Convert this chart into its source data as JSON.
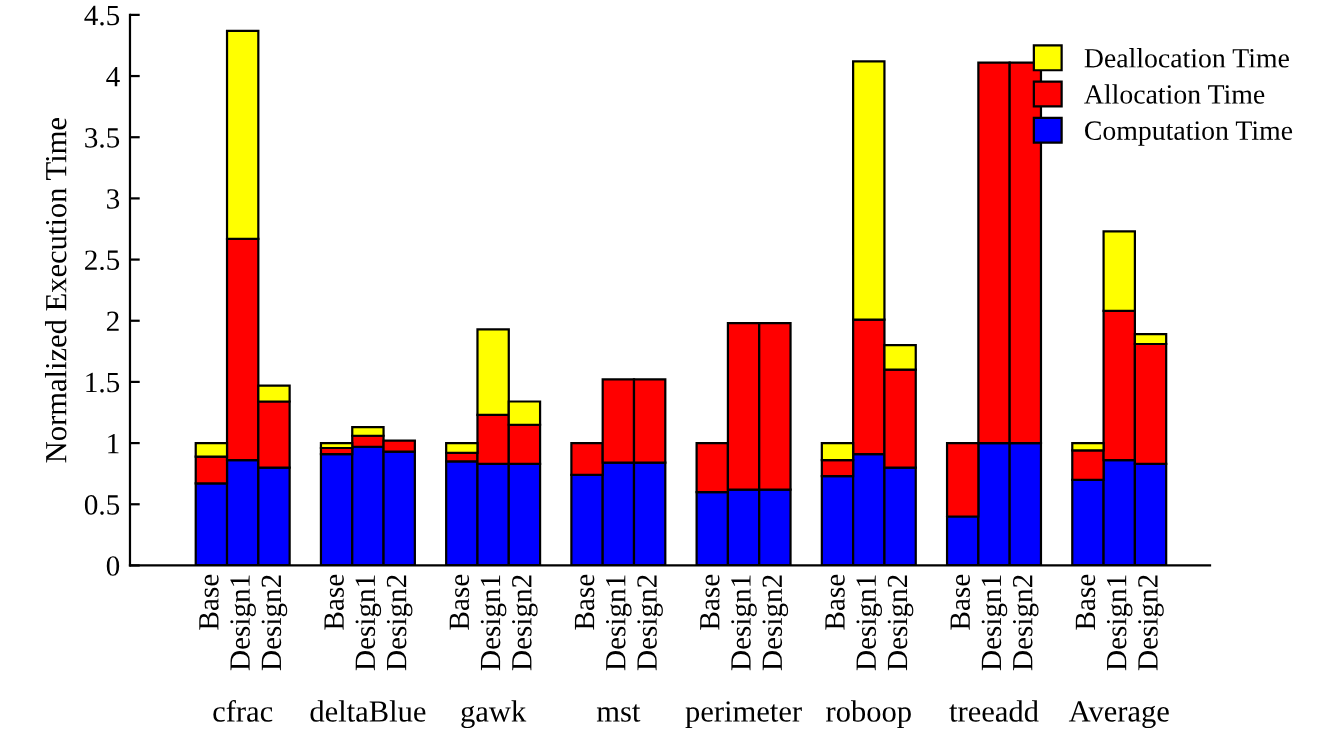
{
  "chart_data": {
    "type": "bar",
    "stacked": true,
    "ylabel": "Normalized Execution Time",
    "categories": [
      "Base",
      "Design1",
      "Design2",
      null,
      "Base",
      "Design1",
      "Design2",
      null,
      "Base",
      "Design1",
      "Design2",
      null,
      "Base",
      "Design1",
      "Design2",
      null,
      "Base",
      "Design1",
      "Design2",
      null,
      "Base",
      "Design1",
      "Design2",
      null,
      "Base",
      "Design1",
      "Design2",
      null,
      "Base",
      "Design1",
      "Design2"
    ],
    "series": [
      {
        "name": "Computation Time",
        "color": "#0000ff",
        "values": [
          0.67,
          0.86,
          0.8,
          null,
          0.91,
          0.97,
          0.93,
          null,
          0.85,
          0.83,
          0.83,
          null,
          0.74,
          0.84,
          0.84,
          null,
          0.6,
          0.62,
          0.62,
          null,
          0.73,
          0.91,
          0.8,
          null,
          0.4,
          1.0,
          1.0,
          null,
          0.7,
          0.86,
          0.83
        ]
      },
      {
        "name": "Allocation Time",
        "color": "#ff0000",
        "values": [
          0.22,
          1.81,
          0.54,
          null,
          0.05,
          0.09,
          0.09,
          null,
          0.07,
          0.4,
          0.32,
          null,
          0.26,
          0.68,
          0.68,
          null,
          0.4,
          1.36,
          1.36,
          null,
          0.13,
          1.1,
          0.8,
          null,
          0.6,
          3.11,
          3.11,
          null,
          0.24,
          1.22,
          0.98
        ]
      },
      {
        "name": "Deallocation Time",
        "color": "#ffff00",
        "values": [
          0.11,
          1.7,
          0.13,
          null,
          0.04,
          0.07,
          null,
          null,
          0.08,
          0.7,
          0.19,
          null,
          null,
          null,
          null,
          null,
          null,
          null,
          null,
          null,
          0.14,
          2.11,
          0.2,
          null,
          null,
          null,
          null,
          null,
          0.06,
          0.65,
          0.08
        ]
      }
    ],
    "ylim": [
      0,
      4.5
    ],
    "yticks": [
      0,
      0.5,
      1,
      1.5,
      2,
      2.5,
      3,
      3.5,
      4,
      4.5
    ],
    "annotations": [
      "cfrac",
      "deltaBlue",
      "gawk",
      "mst",
      "perimeter",
      "roboop",
      "treeadd",
      "Average"
    ],
    "legend": "top right",
    "grid": false
  }
}
